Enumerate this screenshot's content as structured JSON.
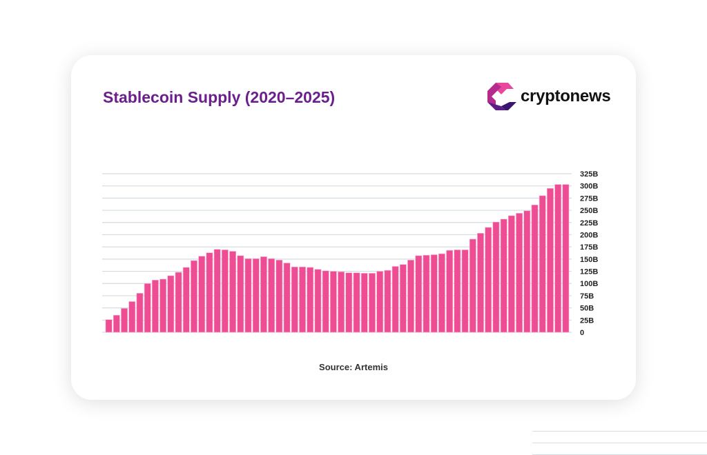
{
  "brand": {
    "name": "cryptonews",
    "logo_colors": [
      "#e8479b",
      "#b52a8e",
      "#5a1f86",
      "#3a1570"
    ]
  },
  "footer": {
    "source": "Source: Artemis"
  },
  "chart_data": {
    "type": "bar",
    "title": "Stablecoin Supply (2020–2025)",
    "xlabel": "",
    "ylabel": "",
    "ylim": [
      0,
      325
    ],
    "yticks": [
      0,
      25,
      50,
      75,
      100,
      125,
      150,
      175,
      200,
      225,
      250,
      275,
      300,
      325
    ],
    "ytick_labels": [
      "0",
      "25B",
      "50B",
      "75B",
      "100B",
      "125B",
      "150B",
      "175B",
      "200B",
      "225B",
      "250B",
      "275B",
      "300B",
      "325B"
    ],
    "grid": true,
    "y_axis_side": "right",
    "bar_color": "#ee4d94",
    "unit": "B USD",
    "values": [
      26,
      35,
      49,
      63,
      80,
      100,
      107,
      109,
      116,
      123,
      133,
      147,
      156,
      163,
      170,
      169,
      166,
      157,
      151,
      151,
      155,
      151,
      148,
      142,
      134,
      134,
      133,
      129,
      126,
      125,
      124,
      122,
      122,
      121,
      121,
      125,
      127,
      135,
      139,
      148,
      157,
      158,
      159,
      161,
      168,
      169,
      169,
      191,
      203,
      215,
      226,
      232,
      239,
      244,
      249,
      261,
      280,
      295,
      303,
      303
    ]
  }
}
